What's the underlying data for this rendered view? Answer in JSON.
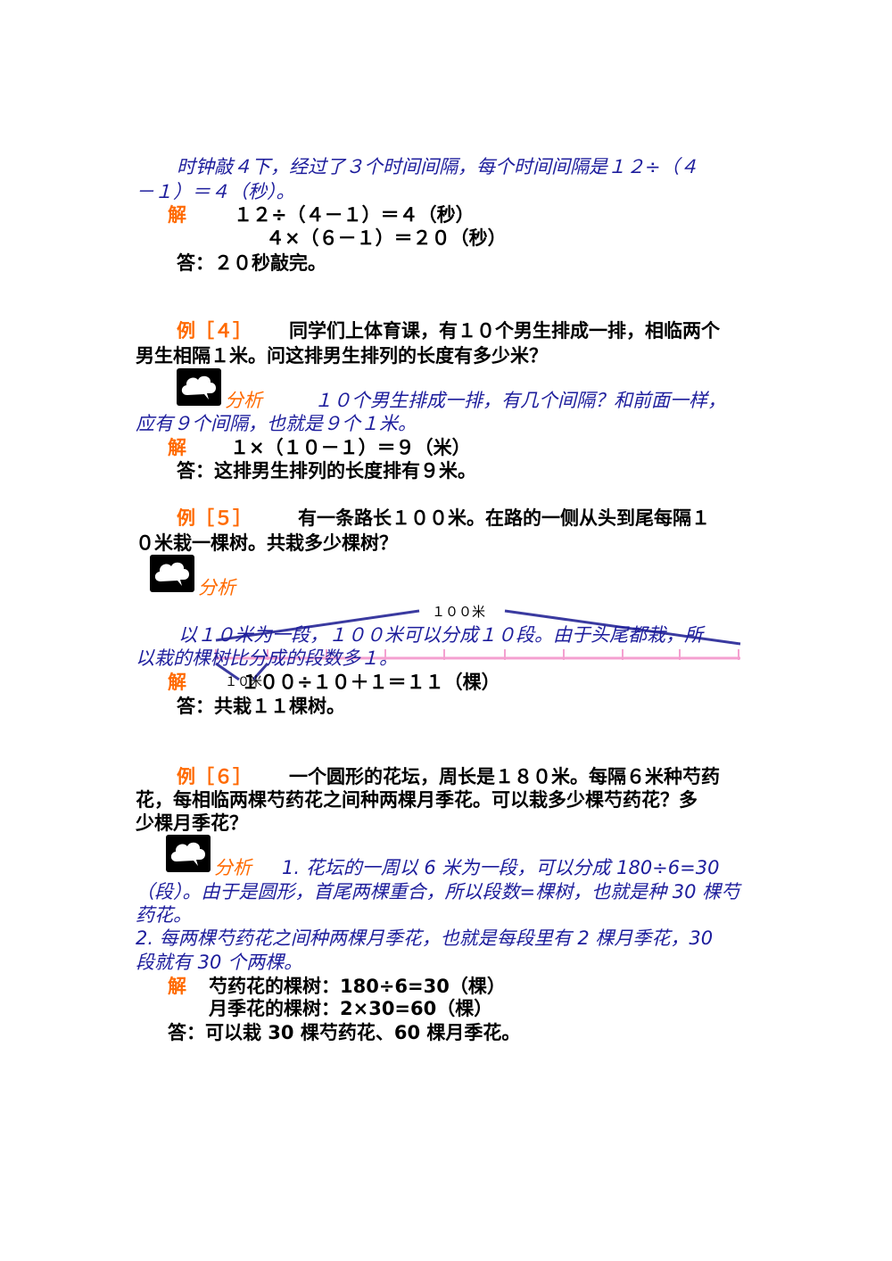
{
  "sec3": {
    "l1": "时钟敲４下，经过了３个时间间隔，每个时间间隔是１２÷（４",
    "l2": "－１）＝４（秒）。",
    "jie": "解",
    "eq1": "１２÷（４－１）＝４（秒）",
    "eq2": "４×（６－１）＝２０（秒）",
    "ans": "答：２０秒敲完。"
  },
  "ex4": {
    "label": "例［４］",
    "q1": "同学们上体育课，有１０个男生排成一排，相临两个",
    "q2": "男生相隔１米。问这排男生排列的长度有多少米？",
    "fenxi": "分析",
    "a1": "１０个男生排成一排，有几个间隔？和前面一样，",
    "a2": "应有９个间隔，也就是９个１米。",
    "jie": "解",
    "eq": "１×（１０－１）＝９（米）",
    "ans": "答：这排男生排列的长度排有９米。"
  },
  "ex5": {
    "label": "例［５］",
    "q1": "有一条路长１００米。在路的一侧从头到尾每隔１",
    "q2": "０米栽一棵树。共栽多少棵树？",
    "fenxi": "分析",
    "diagram_label": "１００米",
    "diagram_small": "１０米",
    "a1": "以１０米为一段，１００米可以分成１０段。由于头尾都栽，所",
    "a2": "以栽的棵树比分成的段数多１。",
    "jie": "解",
    "eq": "１００÷１０＋１＝１１（棵）",
    "ans": "答：共栽１１棵树。"
  },
  "ex6": {
    "label": "例［６］",
    "q1": "一个圆形的花坛，周长是１８０米。每隔６米种芍药",
    "q2": "花，每相临两棵芍药花之间种两棵月季花。可以栽多少棵芍药花？多",
    "q3": "少棵月季花？",
    "fenxi": "分析",
    "a1": "1. 花坛的一周以 6 米为一段，可以分成 180÷6=30",
    "a2": "（段）。由于是圆形，首尾两棵重合，所以段数=棵树，也就是种 30 棵芍",
    "a3": "药花。",
    "a4": "2. 每两棵芍药花之间种两棵月季花，也就是每段里有 2 棵月季花，30",
    "a5": "段就有 30 个两棵。",
    "jie": "解",
    "eq1": "芍药花的棵树：180÷6=30（棵）",
    "eq2": "月季花的棵树：2×30=60（棵）",
    "ans": "答：可以栽 30 棵芍药花、60 棵月季花。"
  },
  "colors": {
    "text_blue": "#1d1d9c",
    "label_orange": "#ff6a00",
    "ruler_pink": "#f4a0d0",
    "brace_blue": "#3a3aa0"
  },
  "icons": [
    "cloud-icon",
    "cloud-icon",
    "cloud-icon"
  ]
}
